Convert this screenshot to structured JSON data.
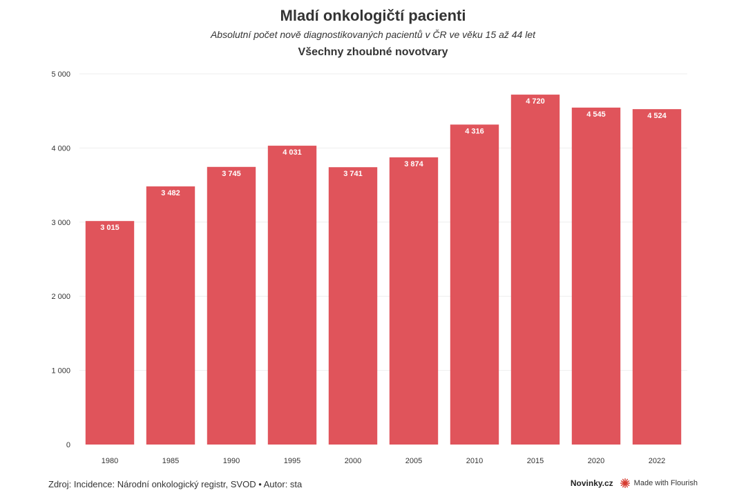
{
  "header": {
    "title": "Mladí onkologičtí pacienti",
    "subtitle": "Absolutní počet nově diagnostikovaných pacientů v ČR ve věku 15 až 44 let",
    "chart_title": "Všechny zhoubné novotvary"
  },
  "footer": {
    "source": "Zdroj: Incidence: Národní onkologický registr, SVOD • Autor: sta",
    "brand": "Novinky.cz",
    "made_with": "Made with Flourish"
  },
  "colors": {
    "bar": "#e0545b",
    "grid": "#eeeeee",
    "flourish": "#d63a2f"
  },
  "chart_data": {
    "type": "bar",
    "title": "Všechny zhoubné novotvary",
    "categories": [
      "1980",
      "1985",
      "1990",
      "1995",
      "2000",
      "2005",
      "2010",
      "2015",
      "2020",
      "2022"
    ],
    "values": [
      3015,
      3482,
      3745,
      4031,
      3741,
      3874,
      4316,
      4720,
      4545,
      4524
    ],
    "value_labels": [
      "3 015",
      "3 482",
      "3 745",
      "4 031",
      "3 741",
      "3 874",
      "4 316",
      "4 720",
      "4 545",
      "4 524"
    ],
    "ylim": [
      0,
      5000
    ],
    "yticks": [
      0,
      1000,
      2000,
      3000,
      4000,
      5000
    ],
    "ytick_labels": [
      "0",
      "1 000",
      "2 000",
      "3 000",
      "4 000",
      "5 000"
    ],
    "grid": true,
    "legend": "none"
  }
}
